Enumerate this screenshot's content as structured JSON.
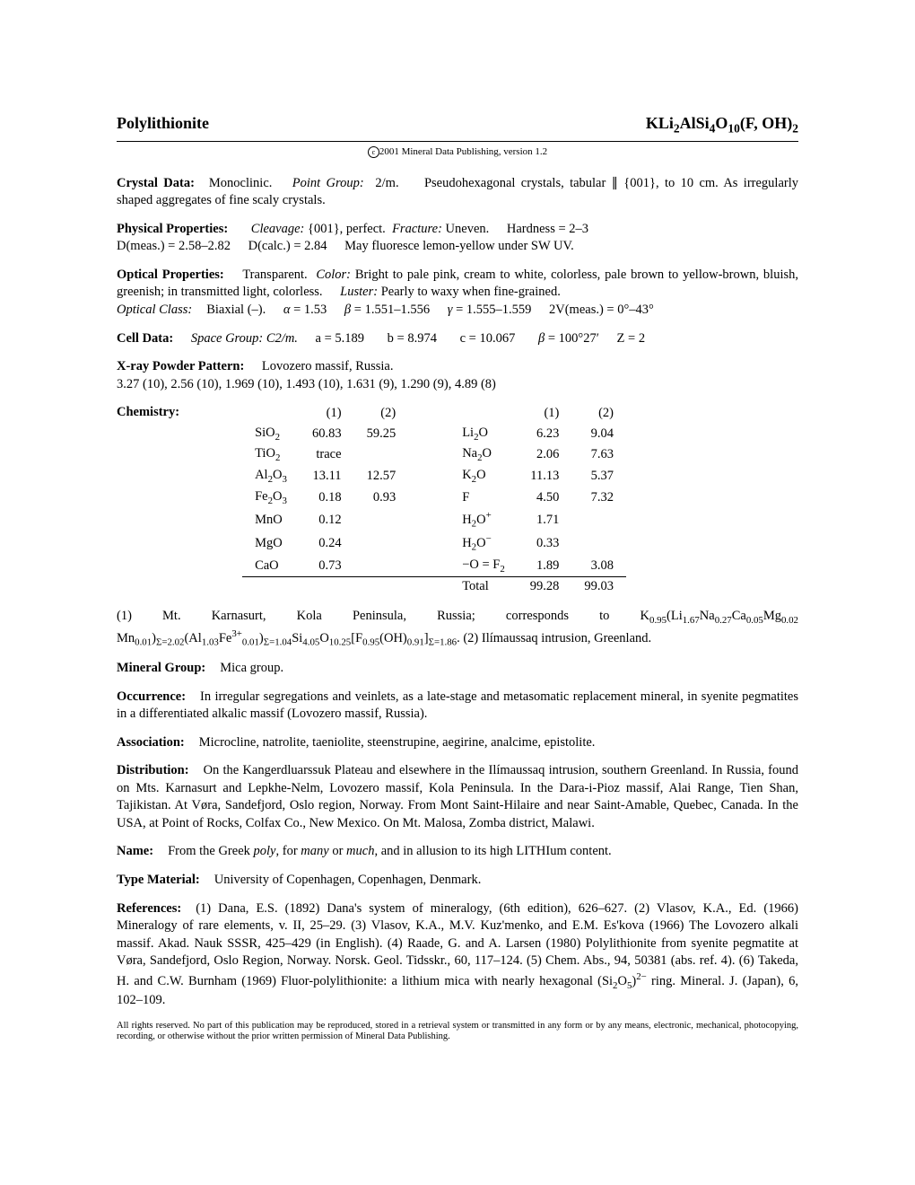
{
  "header": {
    "name": "Polylithionite",
    "formula_html": "KLi<sub>2</sub>AlSi<sub>4</sub>O<sub>10</sub>(F, OH)<sub>2</sub>",
    "copyright": "2001 Mineral Data Publishing, version 1.2"
  },
  "crystal_data": {
    "system": "Monoclinic.",
    "point_group": "2/m.",
    "desc": "Pseudohexagonal crystals, tabular ∥ {001}, to 10 cm. As irregularly shaped aggregates of fine scaly crystals."
  },
  "physical": {
    "cleavage": "{001}, perfect.",
    "fracture": "Uneven.",
    "hardness": "2–3",
    "dmeas": "2.58–2.82",
    "dcalc": "2.84",
    "extra": "May fluoresce lemon-yellow under SW UV."
  },
  "optical": {
    "trans": "Transparent.",
    "color": "Bright to pale pink, cream to white, colorless, pale brown to yellow-brown, bluish, greenish; in transmitted light, colorless.",
    "luster": "Pearly to waxy when fine-grained.",
    "class": "Biaxial (–).",
    "alpha": "1.53",
    "beta": "1.551–1.556",
    "gamma": "1.555–1.559",
    "twov": "0°–43°"
  },
  "cell": {
    "space_group": "C2/m.",
    "a": "5.189",
    "b": "8.974",
    "c": "10.067",
    "beta": "100°27′",
    "z": "2"
  },
  "xray": {
    "locality": "Lovozero massif, Russia.",
    "pattern": "3.27 (10), 2.56 (10), 1.969 (10), 1.493 (10), 1.631 (9), 1.290 (9), 4.89 (8)"
  },
  "chemistry": {
    "left": [
      {
        "name_html": "SiO<sub>2</sub>",
        "c1": "60.83",
        "c2": "59.25"
      },
      {
        "name_html": "TiO<sub>2</sub>",
        "c1": "trace",
        "c2": ""
      },
      {
        "name_html": "Al<sub>2</sub>O<sub>3</sub>",
        "c1": "13.11",
        "c2": "12.57"
      },
      {
        "name_html": "Fe<sub>2</sub>O<sub>3</sub>",
        "c1": "0.18",
        "c2": "0.93"
      },
      {
        "name_html": "MnO",
        "c1": "0.12",
        "c2": ""
      },
      {
        "name_html": "MgO",
        "c1": "0.24",
        "c2": ""
      },
      {
        "name_html": "CaO",
        "c1": "0.73",
        "c2": ""
      }
    ],
    "right": [
      {
        "name_html": "Li<sub>2</sub>O",
        "c1": "6.23",
        "c2": "9.04"
      },
      {
        "name_html": "Na<sub>2</sub>O",
        "c1": "2.06",
        "c2": "7.63"
      },
      {
        "name_html": "K<sub>2</sub>O",
        "c1": "11.13",
        "c2": "5.37"
      },
      {
        "name_html": "F",
        "c1": "4.50",
        "c2": "7.32"
      },
      {
        "name_html": "H<sub>2</sub>O<sup>+</sup>",
        "c1": "1.71",
        "c2": ""
      },
      {
        "name_html": "H<sub>2</sub>O<sup>−</sup>",
        "c1": "0.33",
        "c2": ""
      },
      {
        "name_html": "−O = F<sub>2</sub>",
        "c1": "1.89",
        "c2": "3.08"
      }
    ],
    "total": {
      "label": "Total",
      "c1": "99.28",
      "c2": "99.03"
    },
    "note_html": "(1) Mt. Karnasurt, Kola Peninsula, Russia; corresponds to K<sub>0.95</sub>(Li<sub>1.67</sub>Na<sub>0.27</sub>Ca<sub>0.05</sub>Mg<sub>0.02</sub> Mn<sub>0.01</sub>)<sub>Σ=2.02</sub>(Al<sub>1.03</sub>Fe<sup>3+</sup><sub>0.01</sub>)<sub>Σ=1.04</sub>Si<sub>4.05</sub>O<sub>10.25</sub>[F<sub>0.95</sub>(OH)<sub>0.91</sub>]<sub>Σ=1.86</sub>. (2) Ilímaussaq intrusion, Greenland."
  },
  "mineral_group": "Mica group.",
  "occurrence": "In irregular segregations and veinlets, as a late-stage and metasomatic replacement mineral, in syenite pegmatites in a differentiated alkalic massif (Lovozero massif, Russia).",
  "association": "Microcline, natrolite, taeniolite, steenstrupine, aegirine, analcime, epistolite.",
  "distribution": "On the Kangerdluarssuk Plateau and elsewhere in the Ilímaussaq intrusion, southern Greenland. In Russia, found on Mts. Karnasurt and Lepkhe-Nelm, Lovozero massif, Kola Peninsula. In the Dara-i-Pioz massif, Alai Range, Tien Shan, Tajikistan. At Vøra, Sandefjord, Oslo region, Norway. From Mont Saint-Hilaire and near Saint-Amable, Quebec, Canada. In the USA, at Point of Rocks, Colfax Co., New Mexico. On Mt. Malosa, Zomba district, Malawi.",
  "name_origin_html": "From the Greek <span class=\"italic\">poly</span>, for <span class=\"italic\">many</span> or <span class=\"italic\">much</span>, and in allusion to its high LITHIum content.",
  "type_material": "University of Copenhagen, Copenhagen, Denmark.",
  "references_html": "(1) Dana, E.S. (1892) Dana's system of mineralogy, (6th edition), 626–627. (2) Vlasov, K.A., Ed. (1966) Mineralogy of rare elements, v. II, 25–29. (3) Vlasov, K.A., M.V. Kuz'menko, and E.M. Es'kova (1966) The Lovozero alkali massif. Akad. Nauk SSSR, 425–429 (in English). (4) Raade, G. and A. Larsen (1980) Polylithionite from syenite pegmatite at Vøra, Sandefjord, Oslo Region, Norway. Norsk. Geol. Tidsskr., 60, 117–124. (5) Chem. Abs., 94, 50381 (abs. ref. 4). (6) Takeda, H. and C.W. Burnham (1969) Fluor-polylithionite: a lithium mica with nearly hexagonal (Si<sub>2</sub>O<sub>5</sub>)<sup>2−</sup> ring. Mineral. J. (Japan), 6, 102–109.",
  "footer": "All rights reserved. No part of this publication may be reproduced, stored in a retrieval system or transmitted in any form or by any means, electronic, mechanical, photocopying, recording, or otherwise without the prior written permission of Mineral Data Publishing."
}
